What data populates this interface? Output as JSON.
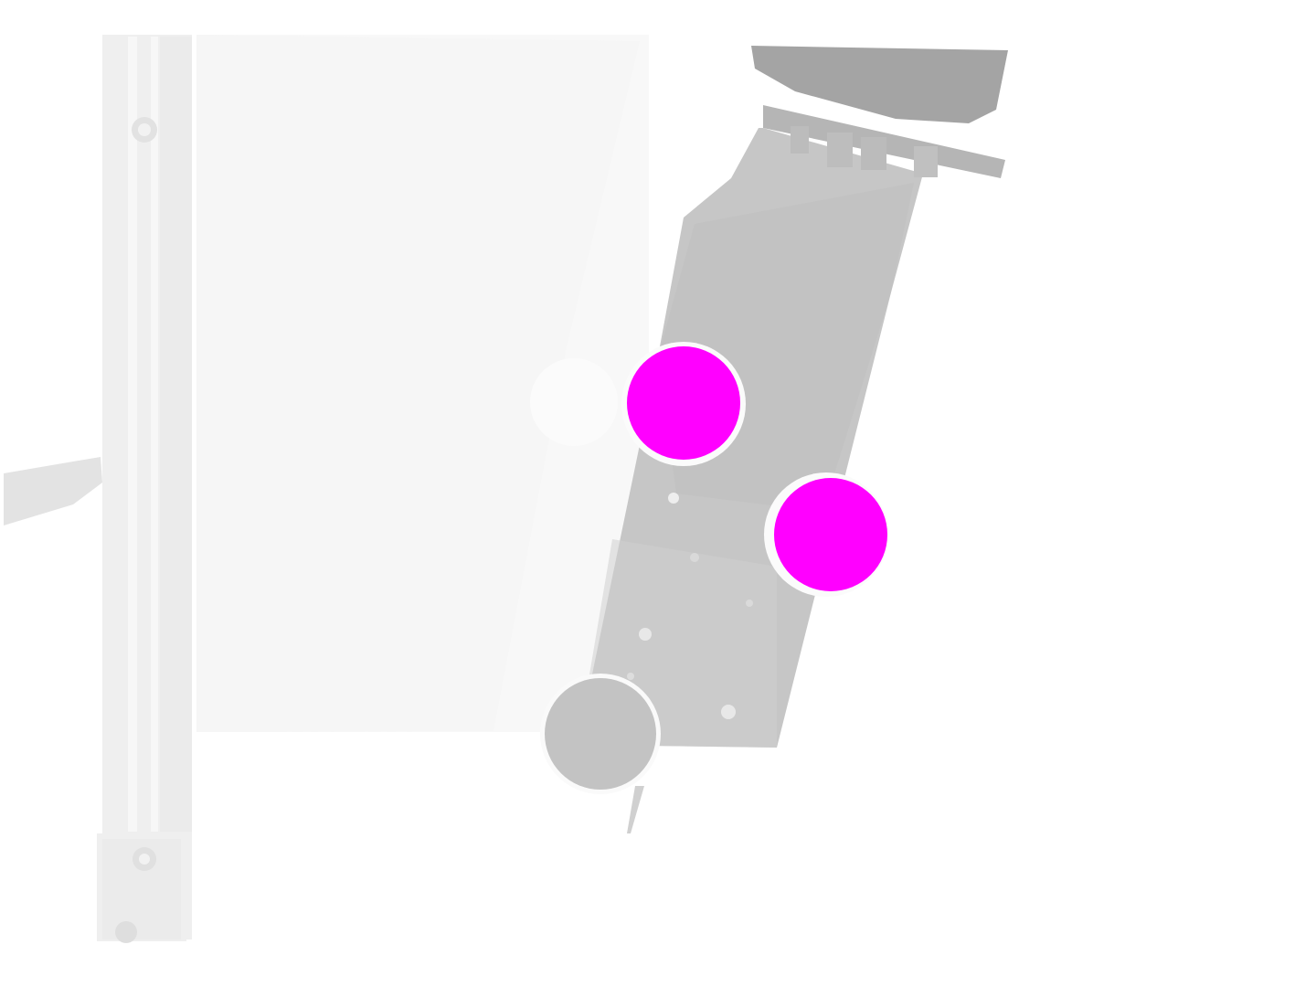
{
  "image": {
    "kind": "depth-map",
    "colors": {
      "background": "#ffffff",
      "wall_panel": "#f9f9f9",
      "frame_rail": "#eeeeee",
      "arm_body": "#c4c4c4",
      "arm_top": "#a3a3a3",
      "side_cylinder": "#bdbdbd",
      "round_foot": "#c2c2c2",
      "marker": "#ff00ff"
    },
    "markers": [
      {
        "name": "marker-upper",
        "shape": "circle",
        "color": "#ff00ff"
      },
      {
        "name": "marker-lower",
        "shape": "circle",
        "color": "#ff00ff"
      }
    ]
  }
}
